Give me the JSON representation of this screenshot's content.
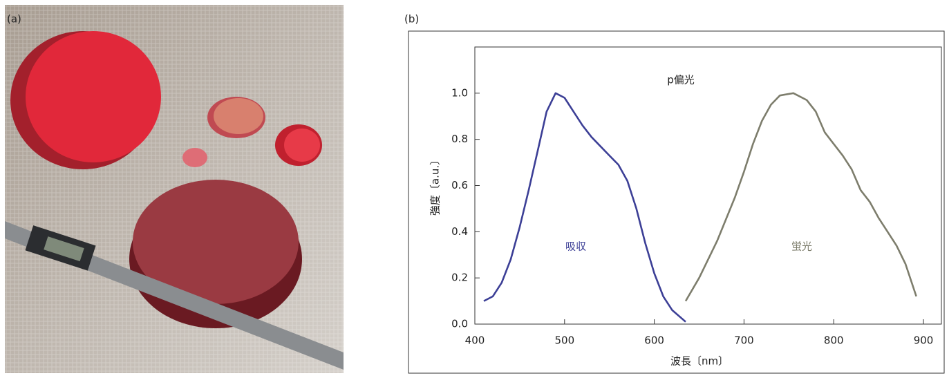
{
  "panel_a": {
    "label": "(a)"
  },
  "chart_data": {
    "type": "line",
    "panel_label": "(b)",
    "xlabel": "波長〔nm〕",
    "ylabel": "強度〔a.u.〕",
    "annotations": [
      "p偏光",
      "吸収",
      "蛍光"
    ],
    "xlim": [
      400,
      920
    ],
    "xticks": [
      400,
      500,
      600,
      700,
      800,
      900
    ],
    "ylim": [
      0,
      1.2
    ],
    "yticks": [
      {
        "value": 0,
        "label": "0.0"
      },
      0.2,
      0.4,
      0.6,
      0.8,
      {
        "value": 1,
        "label": "1.0"
      }
    ],
    "series": [
      {
        "color": "#3c3f96",
        "x": [
          410,
          420,
          430,
          440,
          450,
          460,
          470,
          480,
          490,
          500,
          510,
          520,
          530,
          540,
          550,
          560,
          570,
          580,
          590,
          600,
          610,
          620,
          635
        ],
        "values": [
          0.1,
          0.12,
          0.18,
          0.28,
          0.42,
          0.58,
          0.75,
          0.92,
          1.0,
          0.98,
          0.92,
          0.86,
          0.81,
          0.77,
          0.73,
          0.69,
          0.62,
          0.5,
          0.35,
          0.22,
          0.12,
          0.06,
          0.01
        ]
      },
      {
        "color": "#7d7d6c",
        "x": [
          635,
          650,
          670,
          690,
          700,
          710,
          720,
          730,
          740,
          755,
          770,
          780,
          790,
          800,
          810,
          820,
          830,
          840,
          850,
          860,
          870,
          880,
          892
        ],
        "values": [
          0.1,
          0.2,
          0.36,
          0.55,
          0.66,
          0.78,
          0.88,
          0.95,
          0.99,
          1.0,
          0.97,
          0.92,
          0.83,
          0.78,
          0.73,
          0.67,
          0.58,
          0.53,
          0.46,
          0.4,
          0.34,
          0.26,
          0.12
        ]
      }
    ]
  }
}
